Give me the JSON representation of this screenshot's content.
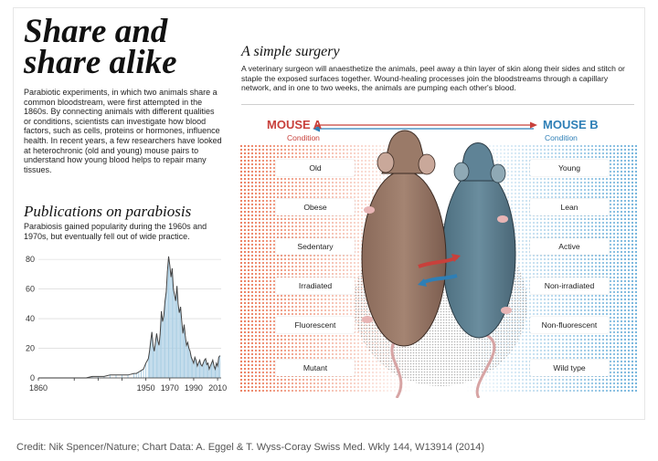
{
  "infographic": {
    "title": "Share and\nshare alike",
    "intro": "Parabiotic experiments, in which two animals share a common bloodstream, were first attempted in the 1860s. By connecting animals with different qualities or conditions, scientists can investigate how blood factors, such as cells, proteins or hormones, influence health. In recent years, a few researchers have looked at heterochronic (old and young) mouse pairs to understand how young blood helps to repair many tissues.",
    "publications_heading": "Publications on parabiosis",
    "publications_desc": "Parabiosis gained popularity during the 1960s and 1970s, but eventually fell out of wide practice.",
    "surgery_heading": "A simple surgery",
    "surgery_desc": "A veterinary surgeon will anaesthetize the animals, peel away a thin layer of skin along their sides and stitch or staple the exposed surfaces together. Wound-healing processes join the bloodstreams through a capillary network, and in one to two weeks, the animals are pumping each other's blood.",
    "mouse_a": {
      "name": "MOUSE A",
      "condition_label": "Condition",
      "conditions": [
        "Old",
        "Obese",
        "Sedentary",
        "Irradiated",
        "Fluorescent",
        "Mutant"
      ]
    },
    "mouse_b": {
      "name": "MOUSE B",
      "condition_label": "Condition",
      "conditions": [
        "Young",
        "Lean",
        "Active",
        "Non-irradiated",
        "Non-fluorescent",
        "Wild type"
      ]
    },
    "credit": "Credit: Nik Spencer/Nature; Chart Data: A. Eggel & T. Wyss-Coray Swiss Med. Wkly 144, W13914 (2014)"
  },
  "colors": {
    "red": "#c8403b",
    "blue": "#2e7fb6",
    "bar": "#a9cde3",
    "line": "#444444"
  },
  "chart_data": {
    "type": "area",
    "title": "Publications on parabiosis",
    "xlabel": "",
    "ylabel": "",
    "xlim": [
      1860,
      2013
    ],
    "ylim": [
      0,
      85
    ],
    "xticks": [
      1860,
      1890,
      1910,
      1930,
      1950,
      1970,
      1990,
      2010
    ],
    "xtick_labels": [
      "1860",
      "",
      "",
      "",
      "1950",
      "1970",
      "1990",
      "2010"
    ],
    "yticks": [
      0,
      20,
      40,
      60,
      80
    ],
    "grid": "horizontal",
    "x": [
      1860,
      1870,
      1880,
      1890,
      1900,
      1905,
      1910,
      1915,
      1920,
      1925,
      1930,
      1935,
      1940,
      1942,
      1944,
      1946,
      1948,
      1950,
      1952,
      1953,
      1954,
      1955,
      1956,
      1957,
      1958,
      1959,
      1960,
      1961,
      1962,
      1963,
      1964,
      1965,
      1966,
      1967,
      1968,
      1969,
      1970,
      1971,
      1972,
      1973,
      1974,
      1975,
      1976,
      1977,
      1978,
      1979,
      1980,
      1981,
      1982,
      1983,
      1984,
      1985,
      1986,
      1987,
      1988,
      1989,
      1990,
      1991,
      1992,
      1993,
      1994,
      1995,
      1996,
      1997,
      1998,
      1999,
      2000,
      2001,
      2002,
      2003,
      2004,
      2005,
      2006,
      2007,
      2008,
      2009,
      2010,
      2011,
      2012
    ],
    "values": [
      0,
      0,
      0,
      0,
      0,
      1,
      1,
      1,
      2,
      2,
      2,
      2,
      3,
      3,
      4,
      5,
      6,
      10,
      13,
      18,
      25,
      31,
      22,
      18,
      24,
      30,
      25,
      22,
      30,
      45,
      38,
      42,
      52,
      58,
      72,
      82,
      76,
      68,
      74,
      60,
      56,
      52,
      62,
      50,
      44,
      48,
      38,
      30,
      36,
      28,
      22,
      24,
      20,
      18,
      14,
      12,
      10,
      14,
      12,
      8,
      10,
      12,
      9,
      8,
      10,
      12,
      13,
      9,
      10,
      6,
      8,
      10,
      12,
      8,
      6,
      10,
      8,
      14,
      15
    ]
  }
}
